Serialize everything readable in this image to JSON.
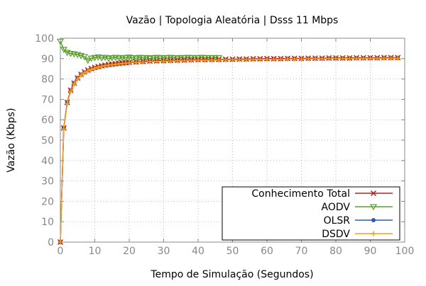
{
  "chart_data": {
    "type": "line",
    "title": "Vazão | Topologia Aleatória | Dsss 11 Mbps",
    "xlabel": "Tempo de Simulação (Segundos)",
    "ylabel": "Vazão (Kbps)",
    "xlim": [
      0,
      100
    ],
    "ylim": [
      0,
      100
    ],
    "xticks": [
      0,
      10,
      20,
      30,
      40,
      50,
      60,
      70,
      80,
      90,
      100
    ],
    "yticks": [
      0,
      10,
      20,
      30,
      40,
      50,
      60,
      70,
      80,
      90,
      100
    ],
    "grid": true,
    "legend_position": "bottom-right",
    "series": [
      {
        "name": "Conhecimento Total",
        "color": "#b22222",
        "marker": "x",
        "x": [
          0,
          1,
          2,
          3,
          4,
          5,
          6,
          7,
          8,
          9,
          10,
          11,
          12,
          13,
          14,
          15,
          16,
          17,
          18,
          19,
          20,
          22,
          24,
          26,
          28,
          30,
          32,
          34,
          36,
          38,
          40,
          42,
          44,
          46,
          48,
          50,
          52,
          54,
          56,
          58,
          60,
          62,
          64,
          66,
          68,
          70,
          72,
          74,
          76,
          78,
          80,
          82,
          84,
          86,
          88,
          90,
          92,
          94,
          96,
          98
        ],
        "values": [
          0,
          56,
          68.5,
          74.5,
          78,
          80.5,
          82.3,
          83.5,
          84.4,
          85.1,
          85.7,
          86.1,
          86.5,
          86.8,
          87.1,
          87.3,
          87.5,
          87.7,
          87.9,
          88,
          88.2,
          88.4,
          88.6,
          88.8,
          88.9,
          89,
          89.1,
          89.2,
          89.3,
          89.4,
          89.5,
          89.5,
          89.6,
          89.6,
          89.7,
          89.7,
          89.8,
          89.8,
          89.9,
          89.9,
          90,
          90,
          90,
          90.1,
          90.1,
          90.1,
          90.2,
          90.2,
          90.2,
          90.3,
          90.3,
          90.3,
          90.3,
          90.4,
          90.4,
          90.4,
          90.4,
          90.5,
          90.5,
          90.5
        ]
      },
      {
        "name": "AODV",
        "color": "#5aa02c",
        "marker": "triangle-down",
        "x": [
          0,
          1,
          2,
          3,
          4,
          5,
          6,
          7,
          8,
          9,
          10,
          11,
          12,
          13,
          14,
          15,
          16,
          17,
          18,
          19,
          20,
          21,
          22,
          23,
          24,
          25,
          26,
          27,
          28,
          29,
          30,
          31,
          32,
          33,
          34,
          35,
          36,
          37,
          38,
          39,
          40,
          41,
          42,
          43,
          44,
          45,
          46
        ],
        "values": [
          98.5,
          94.5,
          93,
          92.5,
          92.3,
          92,
          91.5,
          91,
          89.2,
          90.2,
          90.5,
          90.8,
          90.3,
          90.6,
          90.1,
          90.4,
          90.6,
          90.2,
          90.5,
          90.3,
          90.7,
          90.4,
          90.2,
          90.6,
          90.3,
          90.5,
          90.1,
          90.4,
          90.6,
          90.2,
          90.5,
          90.3,
          90.6,
          90.4,
          90.2,
          90.5,
          90.3,
          90.6,
          90.4,
          90.5,
          90.3,
          90.6,
          90.4,
          90.5,
          90.3,
          90.5,
          90.4
        ]
      },
      {
        "name": "OLSR",
        "color": "#2e5da8",
        "marker": "circle",
        "x": [
          0,
          1,
          2,
          3,
          4,
          5,
          6,
          7,
          8,
          9,
          10,
          11,
          12,
          13,
          14,
          15,
          16,
          17,
          18,
          19,
          20,
          22,
          24,
          26,
          28,
          30,
          32,
          34,
          36,
          38,
          40,
          42,
          44,
          46,
          48,
          50,
          52,
          54,
          56,
          58,
          60,
          62,
          64,
          66,
          68,
          70,
          72,
          74,
          76,
          78,
          80,
          82,
          84,
          86,
          88,
          90,
          92,
          94,
          96,
          98
        ],
        "values": [
          0,
          56,
          68.5,
          74.5,
          78,
          80.5,
          82.2,
          83.3,
          84.2,
          85,
          85.5,
          86,
          86.4,
          86.7,
          87,
          87.2,
          87.4,
          87.6,
          87.8,
          87.9,
          88.1,
          88.3,
          88.5,
          88.7,
          88.8,
          88.9,
          89,
          89.1,
          89.2,
          89.3,
          89.4,
          89.4,
          89.5,
          89.5,
          89.6,
          89.6,
          89.7,
          89.7,
          89.8,
          89.8,
          89.9,
          89.9,
          89.9,
          90,
          90,
          90,
          90.1,
          90.1,
          90.1,
          90.2,
          90.2,
          90.2,
          90.2,
          90.3,
          90.3,
          90.3,
          90.3,
          90.4,
          90.4,
          90.4
        ]
      },
      {
        "name": "DSDV",
        "color": "#f0a020",
        "marker": "plus",
        "x": [
          0,
          1,
          2,
          3,
          4,
          5,
          6,
          7,
          8,
          9,
          10,
          11,
          12,
          13,
          14,
          15,
          16,
          17,
          18,
          19,
          20,
          22,
          24,
          26,
          28,
          30,
          32,
          34,
          36,
          38,
          40,
          42,
          44,
          46,
          48,
          50,
          52,
          54,
          56,
          58,
          60,
          62,
          64,
          66,
          68,
          70,
          72,
          74,
          76,
          78,
          80,
          82,
          84,
          86,
          88,
          90,
          92,
          94,
          96,
          98
        ],
        "values": [
          0,
          55.5,
          68,
          74,
          77.5,
          80,
          81.8,
          83,
          84,
          84.7,
          85.3,
          85.8,
          86.2,
          86.5,
          86.8,
          87,
          87.2,
          87.4,
          87.6,
          87.7,
          87.9,
          88.1,
          88.3,
          88.5,
          88.6,
          88.7,
          88.8,
          88.9,
          89,
          89.1,
          89.2,
          89.2,
          89.3,
          89.3,
          89.4,
          89.4,
          89.5,
          89.5,
          89.6,
          89.6,
          89.7,
          89.7,
          89.7,
          89.8,
          89.8,
          89.8,
          89.9,
          89.9,
          89.9,
          90,
          90,
          90,
          90,
          90.1,
          90.1,
          90.1,
          90.1,
          90.2,
          90.2,
          90.2
        ]
      }
    ]
  }
}
